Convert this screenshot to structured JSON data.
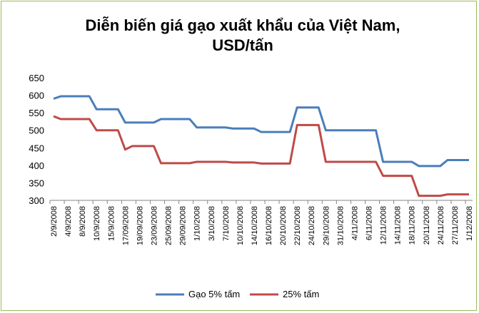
{
  "chart_data": {
    "type": "line",
    "title": "Diễn biến giá gạo xuất khẩu của Việt Nam, USD/tấn",
    "categories": [
      "2/9/2008",
      null,
      "4/9/2008",
      null,
      "8/9/2008",
      null,
      "10/9/2008",
      null,
      "15/9/2008",
      null,
      "17/09/2008",
      null,
      "19/09/2008",
      null,
      "23/09/2008",
      null,
      "25/09/2008",
      null,
      "29/09/2008",
      null,
      "1/10/2008",
      null,
      "3/10/2008",
      null,
      "7/10/2008",
      null,
      "10/10/2008",
      null,
      "14/10/2008",
      null,
      "16/10/2008",
      null,
      "20/10/2008",
      null,
      "22/10/2008",
      null,
      "24/10/2008",
      null,
      "29/10/2008",
      null,
      "31/10/2008",
      null,
      "4/11/2008",
      null,
      "6/11/2008",
      null,
      "12/11/2008",
      null,
      "14/11/2008",
      null,
      "18/11/2008",
      null,
      "20/11/2008",
      null,
      "24/11/2008",
      null,
      "27/11/2008",
      null,
      "1/12/2008"
    ],
    "series": [
      {
        "name": "Gạo 5% tấm",
        "color": "#4a7ebb",
        "values": [
          590,
          597,
          597,
          597,
          597,
          597,
          560,
          560,
          560,
          560,
          522,
          522,
          522,
          522,
          522,
          532,
          532,
          532,
          532,
          532,
          508,
          508,
          508,
          508,
          508,
          505,
          505,
          505,
          505,
          495,
          495,
          495,
          495,
          495,
          565,
          565,
          565,
          565,
          500,
          500,
          500,
          500,
          500,
          500,
          500,
          500,
          410,
          410,
          410,
          410,
          410,
          398,
          398,
          398,
          398,
          415,
          415,
          415,
          415
        ]
      },
      {
        "name": "25% tấm",
        "color": "#be4b48",
        "values": [
          540,
          532,
          532,
          532,
          532,
          532,
          500,
          500,
          500,
          500,
          445,
          455,
          455,
          455,
          455,
          406,
          406,
          406,
          406,
          406,
          410,
          410,
          410,
          410,
          410,
          408,
          408,
          408,
          408,
          405,
          405,
          405,
          405,
          405,
          515,
          515,
          515,
          515,
          410,
          410,
          410,
          410,
          410,
          410,
          410,
          410,
          370,
          370,
          370,
          370,
          370,
          313,
          313,
          313,
          313,
          317,
          317,
          317,
          317
        ]
      }
    ],
    "ylim": [
      300,
      650
    ],
    "yticks": [
      300,
      350,
      400,
      450,
      500,
      550,
      600,
      650
    ],
    "grid": false,
    "legend": "bottom"
  }
}
